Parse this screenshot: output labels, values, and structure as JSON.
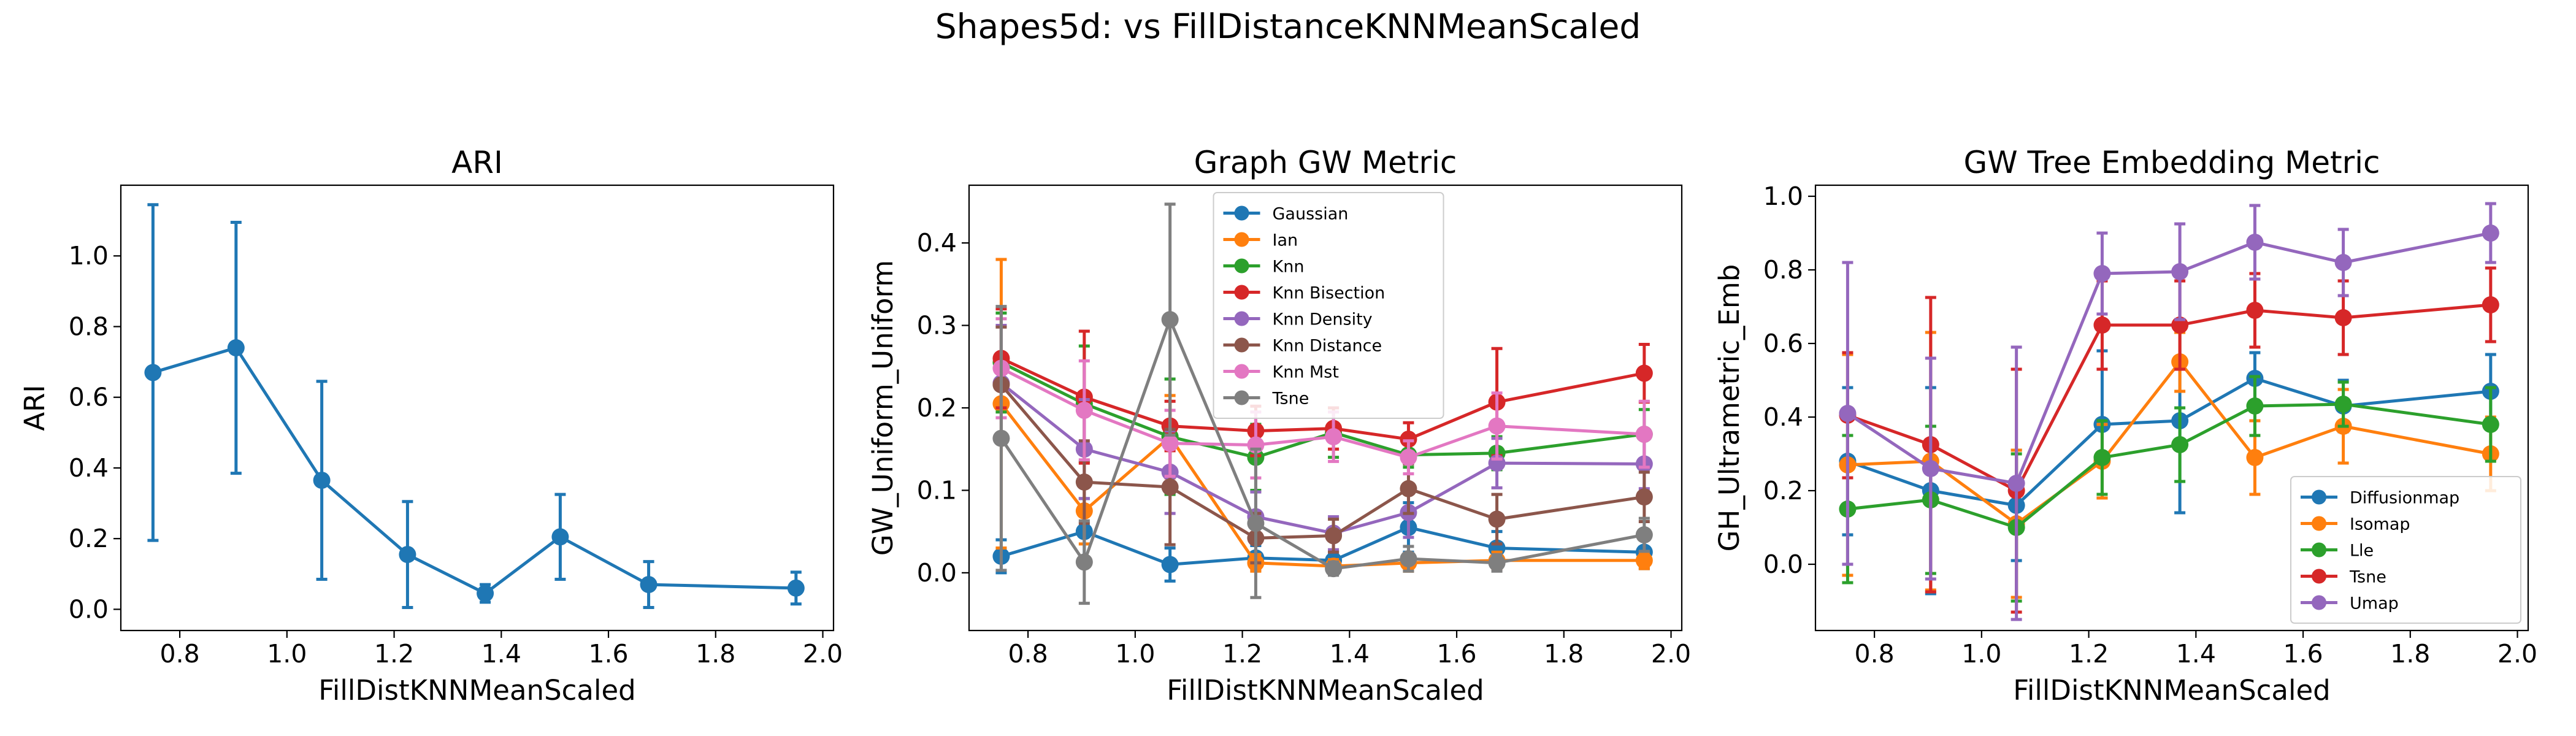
{
  "figure": {
    "title": "Shapes5d: vs FillDistanceKNNMeanScaled"
  },
  "chart_data": [
    {
      "type": "line",
      "title": "ARI",
      "xlabel": "FillDistKNNMeanScaled",
      "ylabel": "ARI",
      "xlim": [
        0.69,
        2.02
      ],
      "ylim": [
        -0.06,
        1.2
      ],
      "xticks": [
        0.8,
        1.0,
        1.2,
        1.4,
        1.6,
        1.8,
        2.0
      ],
      "xtick_labels": [
        "0.8",
        "1.0",
        "1.2",
        "1.4",
        "1.6",
        "1.8",
        "2.0"
      ],
      "yticks": [
        0.0,
        0.2,
        0.4,
        0.6,
        0.8,
        1.0
      ],
      "ytick_labels": [
        "0.0",
        "0.2",
        "0.4",
        "0.6",
        "0.8",
        "1.0"
      ],
      "x": [
        0.75,
        0.905,
        1.065,
        1.225,
        1.37,
        1.51,
        1.675,
        1.95
      ],
      "legend": null,
      "series": [
        {
          "color": "#1f77b4",
          "y": [
            0.67,
            0.74,
            0.365,
            0.155,
            0.045,
            0.205,
            0.07,
            0.06
          ],
          "err": [
            0.475,
            0.355,
            0.28,
            0.15,
            0.025,
            0.12,
            0.065,
            0.045
          ]
        }
      ]
    },
    {
      "type": "line",
      "title": "Graph GW Metric",
      "xlabel": "FillDistKNNMeanScaled",
      "ylabel": "GW_Uniform_Uniform",
      "xlim": [
        0.69,
        2.02
      ],
      "ylim": [
        -0.07,
        0.47
      ],
      "xticks": [
        0.8,
        1.0,
        1.2,
        1.4,
        1.6,
        1.8,
        2.0
      ],
      "xtick_labels": [
        "0.8",
        "1.0",
        "1.2",
        "1.4",
        "1.6",
        "1.8",
        "2.0"
      ],
      "yticks": [
        0.0,
        0.1,
        0.2,
        0.3,
        0.4
      ],
      "ytick_labels": [
        "0.0",
        "0.1",
        "0.2",
        "0.3",
        "0.4"
      ],
      "x": [
        0.75,
        0.905,
        1.065,
        1.225,
        1.37,
        1.51,
        1.675,
        1.95
      ],
      "legend": "top-center",
      "series": [
        {
          "name": "Gaussian",
          "color": "#1f77b4",
          "y": [
            0.02,
            0.05,
            0.01,
            0.018,
            0.015,
            0.055,
            0.03,
            0.025
          ],
          "err": [
            0.02,
            0.04,
            0.02,
            0.015,
            0.01,
            0.03,
            0.02,
            0.02
          ]
        },
        {
          "name": "Ian",
          "color": "#ff7f0e",
          "y": [
            0.205,
            0.075,
            0.165,
            0.012,
            0.008,
            0.012,
            0.015,
            0.015
          ],
          "err": [
            0.175,
            0.04,
            0.05,
            0.01,
            0.008,
            0.01,
            0.01,
            0.01
          ]
        },
        {
          "name": "Knn",
          "color": "#2ca02c",
          "y": [
            0.255,
            0.205,
            0.165,
            0.14,
            0.17,
            0.143,
            0.145,
            0.168
          ],
          "err": [
            0.06,
            0.07,
            0.07,
            0.04,
            0.03,
            0.015,
            0.02,
            0.03
          ]
        },
        {
          "name": "Knn Bisection",
          "color": "#d62728",
          "y": [
            0.26,
            0.213,
            0.178,
            0.172,
            0.175,
            0.162,
            0.207,
            0.242
          ],
          "err": [
            0.06,
            0.08,
            0.03,
            0.03,
            0.025,
            0.02,
            0.065,
            0.035
          ]
        },
        {
          "name": "Knn Density",
          "color": "#9467bd",
          "y": [
            0.23,
            0.15,
            0.122,
            0.068,
            0.048,
            0.073,
            0.133,
            0.132
          ],
          "err": [
            0.07,
            0.06,
            0.05,
            0.03,
            0.02,
            0.03,
            0.03,
            0.03
          ]
        },
        {
          "name": "Knn Distance",
          "color": "#8c564b",
          "y": [
            0.228,
            0.11,
            0.104,
            0.042,
            0.045,
            0.102,
            0.065,
            0.092
          ],
          "err": [
            0.07,
            0.05,
            0.07,
            0.03,
            0.02,
            0.03,
            0.03,
            0.03
          ]
        },
        {
          "name": "Knn Mst",
          "color": "#e377c2",
          "y": [
            0.248,
            0.197,
            0.157,
            0.155,
            0.165,
            0.14,
            0.178,
            0.168
          ],
          "err": [
            0.06,
            0.06,
            0.04,
            0.04,
            0.03,
            0.02,
            0.04,
            0.04
          ]
        },
        {
          "name": "Tsne",
          "color": "#7f7f7f",
          "y": [
            0.163,
            0.013,
            0.307,
            0.06,
            0.005,
            0.017,
            0.012,
            0.046
          ],
          "err": [
            0.16,
            0.05,
            0.14,
            0.09,
            0.008,
            0.015,
            0.01,
            0.02
          ]
        }
      ]
    },
    {
      "type": "line",
      "title": "GW Tree Embedding Metric",
      "xlabel": "FillDistKNNMeanScaled",
      "ylabel": "GH_Ultrametric_Emb",
      "xlim": [
        0.69,
        2.02
      ],
      "ylim": [
        -0.18,
        1.03
      ],
      "xticks": [
        0.8,
        1.0,
        1.2,
        1.4,
        1.6,
        1.8,
        2.0
      ],
      "xtick_labels": [
        "0.8",
        "1.0",
        "1.2",
        "1.4",
        "1.6",
        "1.8",
        "2.0"
      ],
      "yticks": [
        0.0,
        0.2,
        0.4,
        0.6,
        0.8,
        1.0
      ],
      "ytick_labels": [
        "0.0",
        "0.2",
        "0.4",
        "0.6",
        "0.8",
        "1.0"
      ],
      "x": [
        0.75,
        0.905,
        1.065,
        1.225,
        1.37,
        1.51,
        1.675,
        1.95
      ],
      "legend": "lower-right",
      "series": [
        {
          "name": "Diffusionmap",
          "color": "#1f77b4",
          "y": [
            0.28,
            0.2,
            0.16,
            0.38,
            0.39,
            0.505,
            0.43,
            0.47
          ],
          "err": [
            0.2,
            0.28,
            0.15,
            0.2,
            0.25,
            0.07,
            0.07,
            0.1
          ]
        },
        {
          "name": "Isomap",
          "color": "#ff7f0e",
          "y": [
            0.27,
            0.28,
            0.11,
            0.28,
            0.55,
            0.29,
            0.375,
            0.3
          ],
          "err": [
            0.3,
            0.35,
            0.2,
            0.1,
            0.08,
            0.1,
            0.1,
            0.1
          ]
        },
        {
          "name": "Lle",
          "color": "#2ca02c",
          "y": [
            0.15,
            0.175,
            0.1,
            0.29,
            0.325,
            0.43,
            0.435,
            0.38
          ],
          "err": [
            0.2,
            0.2,
            0.2,
            0.1,
            0.1,
            0.08,
            0.06,
            0.1
          ]
        },
        {
          "name": "Tsne",
          "color": "#d62728",
          "y": [
            0.405,
            0.325,
            0.2,
            0.65,
            0.65,
            0.69,
            0.67,
            0.705
          ],
          "err": [
            0.17,
            0.4,
            0.33,
            0.12,
            0.12,
            0.1,
            0.1,
            0.1
          ]
        },
        {
          "name": "Umap",
          "color": "#9467bd",
          "y": [
            0.41,
            0.26,
            0.22,
            0.79,
            0.795,
            0.875,
            0.82,
            0.9
          ],
          "err": [
            0.41,
            0.3,
            0.37,
            0.11,
            0.13,
            0.1,
            0.09,
            0.08
          ]
        }
      ]
    }
  ]
}
